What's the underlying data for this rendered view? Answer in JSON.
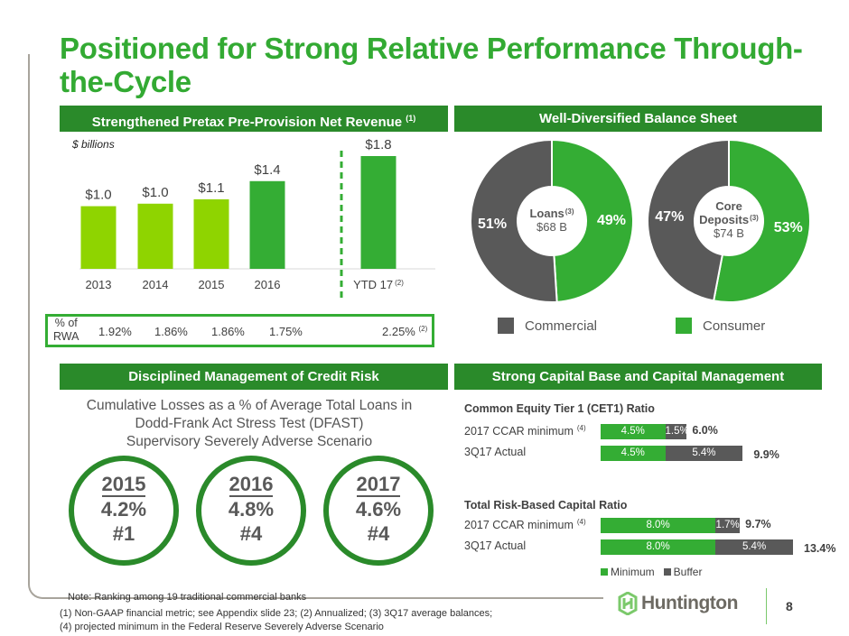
{
  "title": "Positioned for Strong Relative Performance Through-the-Cycle",
  "colors": {
    "brand_green": "#33aa33",
    "header_green": "#2a8a2a",
    "light_green": "#8fd400",
    "bar_green": "#34ad34",
    "dark_gray": "#595959"
  },
  "sections": {
    "ppnr": {
      "title": "Strengthened Pretax Pre-Provision Net Revenue",
      "footnote_ref": "(1)"
    },
    "balance": {
      "title": "Well-Diversified Balance Sheet"
    },
    "credit": {
      "title": "Disciplined Management of Credit Risk"
    },
    "capital": {
      "title": "Strong Capital Base and Capital Management"
    }
  },
  "chart_data": [
    {
      "type": "bar",
      "title": "Strengthened Pretax Pre-Provision Net Revenue (1)",
      "units": "$ billions",
      "categories": [
        "2013",
        "2014",
        "2015",
        "2016",
        "YTD 17"
      ],
      "category_footnotes": [
        "",
        "",
        "",
        "",
        "(2)"
      ],
      "values": [
        1.0,
        1.04,
        1.11,
        1.4,
        1.8
      ],
      "data_labels": [
        "$1.0",
        "$1.0",
        "$1.1",
        "$1.4",
        "$1.8"
      ],
      "bar_colors": [
        "#8fd400",
        "#8fd400",
        "#8fd400",
        "#34ad34",
        "#34ad34"
      ],
      "ylim": [
        0,
        1.8
      ],
      "grid": false,
      "divider_before_index": 4
    },
    {
      "type": "table",
      "title": "% of RWA",
      "row_label": "% of RWA",
      "categories": [
        "2013",
        "2014",
        "2015",
        "2016",
        "YTD 17"
      ],
      "values": [
        "1.92%",
        "1.86%",
        "1.86%",
        "1.75%",
        "2.25%"
      ],
      "footnotes": [
        "",
        "",
        "",
        "",
        "(2)"
      ]
    },
    {
      "type": "pie",
      "title": "Loans",
      "footnote_ref": "(3)",
      "center_value": "$68 B",
      "slices": [
        {
          "name": "Consumer",
          "value": 49,
          "label": "49%",
          "color": "#34ad34"
        },
        {
          "name": "Commercial",
          "value": 51,
          "label": "51%",
          "color": "#595959"
        }
      ]
    },
    {
      "type": "pie",
      "title": "Core Deposits",
      "title_lines": [
        "Core",
        "Deposits"
      ],
      "footnote_ref": "(3)",
      "center_value": "$74 B",
      "slices": [
        {
          "name": "Consumer",
          "value": 53,
          "label": "53%",
          "color": "#34ad34"
        },
        {
          "name": "Commercial",
          "value": 47,
          "label": "47%",
          "color": "#595959"
        }
      ]
    },
    {
      "type": "bar",
      "orientation": "horizontal-stacked",
      "title": "Common Equity Tier 1 (CET1) Ratio",
      "categories": [
        "2017 CCAR minimum",
        "3Q17 Actual"
      ],
      "category_footnotes": [
        "(4)",
        ""
      ],
      "series": [
        {
          "name": "Minimum",
          "values": [
            4.5,
            4.5
          ],
          "labels": [
            "4.5%",
            "4.5%"
          ],
          "color": "#34ad34"
        },
        {
          "name": "Buffer",
          "values": [
            1.5,
            5.4
          ],
          "labels": [
            "1.5%",
            "5.4%"
          ],
          "color": "#595959"
        }
      ],
      "totals": [
        "6.0%",
        "9.9%"
      ]
    },
    {
      "type": "bar",
      "orientation": "horizontal-stacked",
      "title": "Total Risk-Based Capital Ratio",
      "categories": [
        "2017 CCAR minimum",
        "3Q17 Actual"
      ],
      "category_footnotes": [
        "(4)",
        ""
      ],
      "series": [
        {
          "name": "Minimum",
          "values": [
            8.0,
            8.0
          ],
          "labels": [
            "8.0%",
            "8.0%"
          ],
          "color": "#34ad34"
        },
        {
          "name": "Buffer",
          "values": [
            1.7,
            5.4
          ],
          "labels": [
            "1.7%",
            "5.4%"
          ],
          "color": "#595959"
        }
      ],
      "totals": [
        "9.7%",
        "13.4%"
      ],
      "legend": [
        "Minimum",
        "Buffer"
      ]
    }
  ],
  "balance_legend": [
    {
      "name": "Commercial",
      "color": "#595959"
    },
    {
      "name": "Consumer",
      "color": "#34ad34"
    }
  ],
  "credit": {
    "caption_lines": [
      "Cumulative Losses as a % of Average Total Loans in",
      "Dodd-Frank Act Stress Test (DFAST)",
      "Supervisory Severely Adverse Scenario"
    ],
    "rankings": [
      {
        "year": "2015",
        "loss": "4.2%",
        "rank": "#1"
      },
      {
        "year": "2016",
        "loss": "4.8%",
        "rank": "#4"
      },
      {
        "year": "2017",
        "loss": "4.6%",
        "rank": "#4"
      }
    ],
    "note": "Note: Ranking among 19 traditional commercial banks"
  },
  "footnotes": [
    "(1)  Non-GAAP financial metric; see Appendix slide 23;  (2) Annualized;  (3) 3Q17 average balances;",
    "(4)  projected minimum in the Federal Reserve Severely Adverse Scenario"
  ],
  "logo": {
    "name": "Huntington",
    "icon": "huntington-logo-icon"
  },
  "page_number": "8"
}
